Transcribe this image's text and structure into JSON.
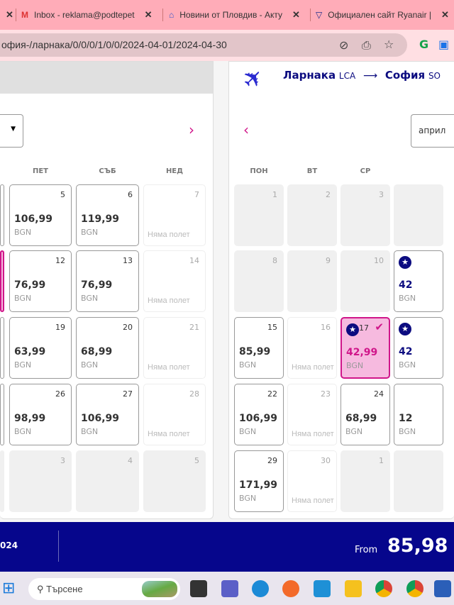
{
  "browser": {
    "tabs": [
      {
        "label": "Inbox - reklama@podtepet",
        "icon": "gmail-icon"
      },
      {
        "label": "Новини от Пловдив - Акту",
        "icon": "news-icon"
      },
      {
        "label": "Официален сайт Ryanair |",
        "icon": "ryanair-icon"
      }
    ],
    "url": "офия-/ларнака/0/0/0/1/0/0/2024-04-01/2024-04-30"
  },
  "route": {
    "from_city": "Ларнака",
    "from_code": "LCA",
    "arrow": "⟶",
    "to_city": "София",
    "to_code": "SO"
  },
  "left_calendar": {
    "weekdays": [
      "ПЕТ",
      "СЪБ",
      "НЕД"
    ],
    "cols": [
      [
        {
          "d": "",
          "p": "",
          "t": "edge"
        },
        {
          "d": "",
          "p": "",
          "t": "sel"
        },
        {
          "d": "",
          "p": "",
          "t": "edge"
        },
        {
          "d": "",
          "p": "",
          "t": "edge"
        },
        {
          "d": "",
          "p": "",
          "t": "dis"
        }
      ],
      [
        {
          "d": "5",
          "p": "106,99"
        },
        {
          "d": "12",
          "p": "76,99"
        },
        {
          "d": "19",
          "p": "63,99"
        },
        {
          "d": "26",
          "p": "98,99"
        },
        {
          "d": "3",
          "t": "dis"
        }
      ],
      [
        {
          "d": "6",
          "p": "119,99"
        },
        {
          "d": "13",
          "p": "76,99"
        },
        {
          "d": "20",
          "p": "68,99"
        },
        {
          "d": "27",
          "p": "106,99"
        },
        {
          "d": "4",
          "t": "dis"
        }
      ],
      [
        {
          "d": "7",
          "t": "nf"
        },
        {
          "d": "14",
          "t": "nf"
        },
        {
          "d": "21",
          "t": "nf"
        },
        {
          "d": "28",
          "t": "nf"
        },
        {
          "d": "5",
          "t": "dis"
        }
      ]
    ]
  },
  "right_calendar": {
    "month_select": "април",
    "weekdays": [
      "ПОН",
      "ВТ",
      "СР"
    ],
    "cols": [
      [
        {
          "d": "1",
          "t": "dis"
        },
        {
          "d": "8",
          "t": "dis"
        },
        {
          "d": "15",
          "p": "85,99"
        },
        {
          "d": "22",
          "p": "106,99"
        },
        {
          "d": "29",
          "p": "171,99"
        }
      ],
      [
        {
          "d": "2",
          "t": "dis"
        },
        {
          "d": "9",
          "t": "dis"
        },
        {
          "d": "16",
          "t": "nf"
        },
        {
          "d": "23",
          "t": "nf"
        },
        {
          "d": "30",
          "t": "nf"
        }
      ],
      [
        {
          "d": "3",
          "t": "dis"
        },
        {
          "d": "10",
          "t": "dis"
        },
        {
          "d": "17",
          "p": "42,99",
          "t": "sel"
        },
        {
          "d": "24",
          "p": "68,99"
        },
        {
          "d": "1",
          "t": "dis"
        }
      ],
      [
        {
          "d": "",
          "t": "dis"
        },
        {
          "d": "",
          "p": "42",
          "t": "star"
        },
        {
          "d": "",
          "p": "42",
          "t": "star"
        },
        {
          "d": "",
          "p": "12"
        },
        {
          "d": "",
          "t": "dis"
        }
      ]
    ]
  },
  "currency": "BGN",
  "no_flight": "Няма полет",
  "bottom_bar": {
    "date_fragment": "024",
    "from_label": "From",
    "price": "85,98"
  },
  "taskbar": {
    "search_placeholder": "Търсене"
  },
  "colors": {
    "brand": "#06068c",
    "accent": "#d0168a",
    "selected_bg": "#f6badf"
  }
}
